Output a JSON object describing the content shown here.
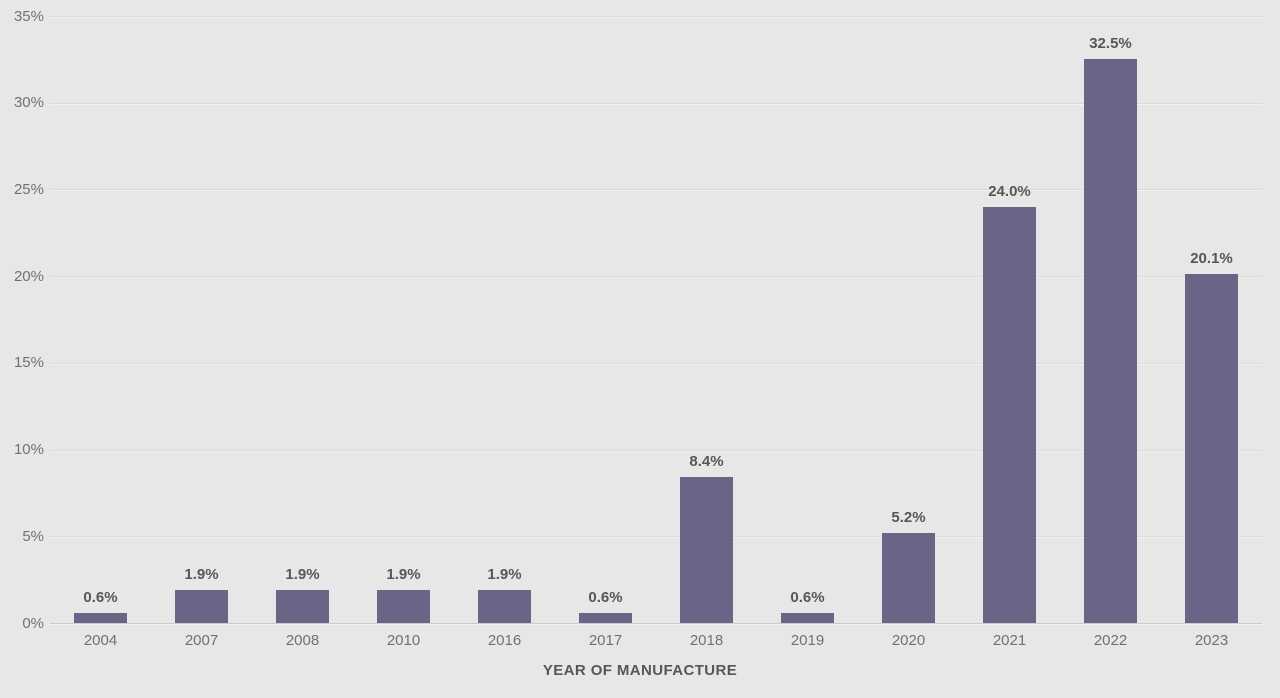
{
  "chart_data": {
    "type": "bar",
    "title": "",
    "xlabel": "YEAR OF MANUFACTURE",
    "ylabel": "",
    "categories": [
      "2004",
      "2007",
      "2008",
      "2010",
      "2016",
      "2017",
      "2018",
      "2019",
      "2020",
      "2021",
      "2022",
      "2023"
    ],
    "values": [
      0.6,
      1.9,
      1.9,
      1.9,
      1.9,
      0.6,
      8.4,
      0.6,
      5.2,
      24.0,
      32.5,
      20.1
    ],
    "value_labels": [
      "0.6%",
      "1.9%",
      "1.9%",
      "1.9%",
      "1.9%",
      "0.6%",
      "8.4%",
      "0.6%",
      "5.2%",
      "24.0%",
      "32.5%",
      "20.1%"
    ],
    "ylim": [
      0,
      35
    ],
    "ytick_values": [
      0,
      5,
      10,
      15,
      20,
      25,
      30,
      35
    ],
    "ytick_labels": [
      "0%",
      "5%",
      "10%",
      "15%",
      "20%",
      "25%",
      "30%",
      "35%"
    ],
    "grid": "on",
    "legend": "none",
    "colors": {
      "bar": "#6a6486",
      "background": "#e8e7e7",
      "gridline": "#dadada",
      "axis_line": "#cbcbcb",
      "tick_label": "#717171",
      "value_label": "#575757",
      "axis_title": "#575757"
    }
  }
}
